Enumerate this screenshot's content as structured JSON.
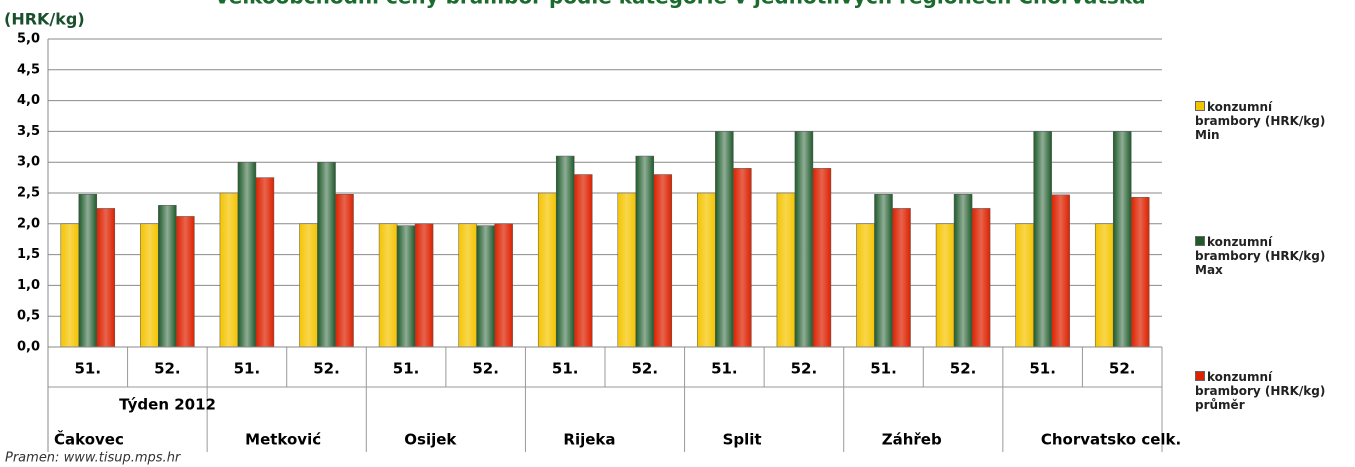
{
  "chart_data": {
    "type": "bar",
    "title": "Velkoobchodní ceny brambor podle kategorie v jednotlivých regionech Chorvatska",
    "y_label": "(HRK/kg)",
    "x_label": "Týden 2012",
    "source": "Pramen: www.tisup.mps.hr",
    "categories": [
      "51.",
      "52.",
      "51.",
      "52.",
      "51.",
      "52.",
      "51.",
      "52.",
      "51.",
      "52.",
      "51.",
      "52.",
      "51.",
      "52."
    ],
    "regions": [
      "Čakovec",
      "Metković",
      "Osijek",
      "Rijeka",
      "Split",
      "Záhřeb",
      "Chorvatsko celk."
    ],
    "series": [
      {
        "name": "konzumní brambory (HRK/kg)  Min",
        "color": "#f5c400",
        "values": [
          2.0,
          2.0,
          2.5,
          2.0,
          2.0,
          2.0,
          2.5,
          2.5,
          2.5,
          2.5,
          2.0,
          2.0,
          2.0,
          2.0
        ]
      },
      {
        "name": "konzumní brambory (HRK/kg) Max",
        "color": "#1e5a2a",
        "values": [
          2.48,
          2.3,
          3.0,
          3.0,
          1.97,
          1.97,
          3.1,
          3.1,
          3.5,
          3.5,
          2.48,
          2.48,
          3.5,
          3.5
        ]
      },
      {
        "name": "konzumní brambory (HRK/kg) průměr",
        "color": "#dd2200",
        "values": [
          2.25,
          2.12,
          2.75,
          2.48,
          2.0,
          2.0,
          2.8,
          2.8,
          2.9,
          2.9,
          2.25,
          2.25,
          2.47,
          2.43
        ]
      }
    ],
    "ylim": [
      0,
      5
    ],
    "yticks": [
      {
        "value": 0,
        "label": "0,0"
      },
      {
        "value": 0.5,
        "label": "0,5"
      },
      {
        "value": 1,
        "label": "1,0"
      },
      {
        "value": 1.5,
        "label": "1,5"
      },
      {
        "value": 2,
        "label": "2,0"
      },
      {
        "value": 2.5,
        "label": "2,5"
      },
      {
        "value": 3,
        "label": "3,0"
      },
      {
        "value": 3.5,
        "label": "3,5"
      },
      {
        "value": 4,
        "label": "4,0"
      },
      {
        "value": 4.5,
        "label": "4,5"
      },
      {
        "value": 5,
        "label": "5,0"
      }
    ],
    "grid": true
  }
}
